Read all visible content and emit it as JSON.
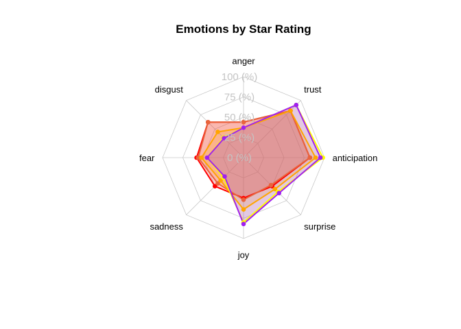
{
  "chart_data": {
    "type": "radar",
    "title": "Emotions by Star Rating",
    "axes": [
      "anger",
      "trust",
      "anticipation",
      "surprise",
      "joy",
      "sadness",
      "fear",
      "disgust"
    ],
    "tick_labels": [
      "0 (%)",
      "25 (%)",
      "50 (%)",
      "75 (%)",
      "100 (%)"
    ],
    "range": [
      0,
      100
    ],
    "grid": true,
    "legend": "none",
    "series": [
      {
        "color": "#ff0000",
        "fill": "#ff0000",
        "values": [
          44,
          82,
          82,
          50,
          50,
          50,
          58,
          62
        ]
      },
      {
        "color": "#e8643c",
        "fill": "#e8643c",
        "values": [
          44,
          82,
          82,
          48,
          52,
          45,
          56,
          62
        ]
      },
      {
        "color": "#ffa500",
        "fill": "#ffa500",
        "values": [
          37,
          82,
          89,
          55,
          64,
          40,
          52,
          45
        ]
      },
      {
        "color": "#ffff00",
        "fill": "#c8c864",
        "values": [
          37,
          92,
          98,
          60,
          80,
          35,
          45,
          35
        ]
      },
      {
        "color": "#a020f0",
        "fill": "#a020f0",
        "values": [
          37,
          92,
          95,
          62,
          82,
          33,
          45,
          34
        ]
      }
    ]
  }
}
